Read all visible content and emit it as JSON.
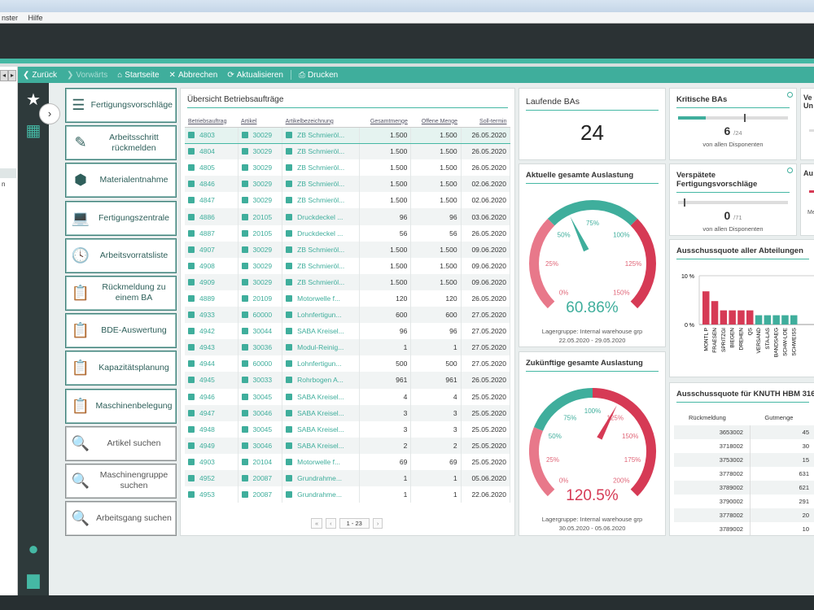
{
  "menu": {
    "items": [
      "nster",
      "Hilfe"
    ]
  },
  "toolbar": {
    "back": "Zurück",
    "forward": "Vorwärts",
    "home": "Startseite",
    "cancel": "Abbrechen",
    "refresh": "Aktualisieren",
    "print": "Drucken"
  },
  "left_strip": {
    "fragment": "n"
  },
  "nav": [
    {
      "label": "Fertigungsvorschläge",
      "icon": "list-icon",
      "glyph": "☰",
      "style": "teal"
    },
    {
      "label": "Arbeitsschritt rückmelden",
      "icon": "edit-doc-icon",
      "glyph": "✎",
      "style": "teal"
    },
    {
      "label": "Materialentnahme",
      "icon": "cubes-icon",
      "glyph": "⬢",
      "style": "teal"
    },
    {
      "label": "Fertigungszentrale",
      "icon": "laptop-icon",
      "glyph": "💻",
      "style": "dark"
    },
    {
      "label": "Arbeitsvorratsliste",
      "icon": "clock-icon",
      "glyph": "🕓",
      "style": "dark"
    },
    {
      "label": "Rückmeldung zu einem BA",
      "icon": "clipboard-icon",
      "glyph": "📋",
      "style": "dark"
    },
    {
      "label": "BDE-Auswertung",
      "icon": "clipboard-icon",
      "glyph": "📋",
      "style": "dark"
    },
    {
      "label": "Kapazitätsplanung",
      "icon": "clipboard-icon",
      "glyph": "📋",
      "style": "dark"
    },
    {
      "label": "Maschinenbelegung",
      "icon": "clipboard-icon",
      "glyph": "📋",
      "style": "dark"
    },
    {
      "label": "Artikel suchen",
      "icon": "search-icon",
      "glyph": "🔍",
      "style": "grey"
    },
    {
      "label": "Maschinengruppe suchen",
      "icon": "search-icon",
      "glyph": "🔍",
      "style": "grey"
    },
    {
      "label": "Arbeitsgang suchen",
      "icon": "search-icon",
      "glyph": "🔍",
      "style": "grey"
    }
  ],
  "orders": {
    "title": "Übersicht Betriebsaufträge",
    "columns": [
      "Betriebsauftrag",
      "Artikel",
      "Artikelbezeichnung",
      "Gesamtmenge",
      "Offene Menge",
      "Soll-termin"
    ],
    "rows": [
      [
        "4803",
        "30029",
        "ZB Schmieröl...",
        "1.500",
        "1.500",
        "26.05.2020"
      ],
      [
        "4804",
        "30029",
        "ZB Schmieröl...",
        "1.500",
        "1.500",
        "26.05.2020"
      ],
      [
        "4805",
        "30029",
        "ZB Schmieröl...",
        "1.500",
        "1.500",
        "26.05.2020"
      ],
      [
        "4846",
        "30029",
        "ZB Schmieröl...",
        "1.500",
        "1.500",
        "02.06.2020"
      ],
      [
        "4847",
        "30029",
        "ZB Schmieröl...",
        "1.500",
        "1.500",
        "02.06.2020"
      ],
      [
        "4886",
        "20105",
        "Druckdeckel ...",
        "96",
        "96",
        "03.06.2020"
      ],
      [
        "4887",
        "20105",
        "Druckdeckel ...",
        "56",
        "56",
        "26.05.2020"
      ],
      [
        "4907",
        "30029",
        "ZB Schmieröl...",
        "1.500",
        "1.500",
        "09.06.2020"
      ],
      [
        "4908",
        "30029",
        "ZB Schmieröl...",
        "1.500",
        "1.500",
        "09.06.2020"
      ],
      [
        "4909",
        "30029",
        "ZB Schmieröl...",
        "1.500",
        "1.500",
        "09.06.2020"
      ],
      [
        "4889",
        "20109",
        "Motorwelle f...",
        "120",
        "120",
        "26.05.2020"
      ],
      [
        "4933",
        "60000",
        "Lohnfertigun...",
        "600",
        "600",
        "27.05.2020"
      ],
      [
        "4942",
        "30044",
        "SABA Kreisel...",
        "96",
        "96",
        "27.05.2020"
      ],
      [
        "4943",
        "30036",
        "Modul-Reinig...",
        "1",
        "1",
        "27.05.2020"
      ],
      [
        "4944",
        "60000",
        "Lohnfertigun...",
        "500",
        "500",
        "27.05.2020"
      ],
      [
        "4945",
        "30033",
        "Rohrbogen A...",
        "961",
        "961",
        "26.05.2020"
      ],
      [
        "4946",
        "30045",
        "SABA Kreisel...",
        "4",
        "4",
        "25.05.2020"
      ],
      [
        "4947",
        "30046",
        "SABA Kreisel...",
        "3",
        "3",
        "25.05.2020"
      ],
      [
        "4948",
        "30045",
        "SABA Kreisel...",
        "3",
        "3",
        "25.05.2020"
      ],
      [
        "4949",
        "30046",
        "SABA Kreisel...",
        "2",
        "2",
        "25.05.2020"
      ],
      [
        "4903",
        "20104",
        "Motorwelle f...",
        "69",
        "69",
        "25.05.2020"
      ],
      [
        "4952",
        "20087",
        "Grundrahme...",
        "1",
        "1",
        "05.06.2020"
      ],
      [
        "4953",
        "20087",
        "Grundrahme...",
        "1",
        "1",
        "22.06.2020"
      ]
    ],
    "pager": {
      "first": "«",
      "prev": "‹",
      "current": "1 - 23",
      "next": "›"
    }
  },
  "running": {
    "title": "Laufende BAs",
    "value": "24"
  },
  "gauge_current": {
    "title": "Aktuelle gesamte Auslastung",
    "value": "60.86%",
    "value_fraction": 0.6086,
    "ticks": [
      "0%",
      "25%",
      "50%",
      "75%",
      "100%",
      "125%",
      "150%"
    ],
    "group": "Lagergruppe: Internal warehouse grp",
    "period": "22.05.2020 - 29.05.2020",
    "value_color": "#3fae9c"
  },
  "gauge_future": {
    "title": "Zukünftige gesamte Auslastung",
    "value": "120.5%",
    "value_fraction": 1.205,
    "ticks": [
      "0%",
      "25%",
      "50%",
      "75%",
      "100%",
      "125%",
      "150%",
      "175%",
      "200%"
    ],
    "group": "Lagergruppe: Internal warehouse grp",
    "period": "30.05.2020 - 05.06.2020",
    "value_color": "#d63a55"
  },
  "critical": {
    "title": "Kritische BAs",
    "value": "6",
    "total": "/24",
    "fraction": 0.25,
    "sub": "von allen Disponenten"
  },
  "late": {
    "title": "Verspätete Fertigungsvorschläge",
    "value": "0",
    "total": "/71",
    "fraction": 0.0,
    "sub": "von allen Disponenten"
  },
  "edge_cards": {
    "a": "Ve",
    "a2": "Un",
    "b": "Au",
    "b2": "Me"
  },
  "scrap": {
    "title": "Ausschussquote aller Abteilungen",
    "y_top": "10 %",
    "y_bottom": "0 %"
  },
  "chart_data": {
    "type": "bar",
    "title": "Ausschussquote aller Abteilungen",
    "categories": [
      "MONTL P",
      "FRAESEN",
      "SPRITZGI",
      "BIEGEN",
      "DREHEN",
      "QS",
      "VERSAND",
      "STA-LAS",
      "BANDSAEG",
      "SCHW-LOE",
      "SCHWEISS"
    ],
    "values": [
      6.8,
      4.8,
      2.9,
      2.9,
      2.9,
      2.9,
      1.9,
      1.9,
      1.9,
      1.9,
      1.9
    ],
    "ylim": [
      0,
      10
    ],
    "ytick_labels": [
      "0 %",
      "10 %"
    ],
    "colors": [
      "#d63a55",
      "#d63a55",
      "#d63a55",
      "#d63a55",
      "#d63a55",
      "#d63a55",
      "#3fae9c",
      "#3fae9c",
      "#3fae9c",
      "#3fae9c",
      "#3fae9c"
    ]
  },
  "scrap_machine": {
    "title": "Ausschussquote für KNUTH HBM 3165 NC",
    "columns": [
      "Rückmeldung",
      "Gutmenge"
    ],
    "rows": [
      [
        "3653002",
        "45"
      ],
      [
        "3718002",
        "30"
      ],
      [
        "3753002",
        "15"
      ],
      [
        "3778002",
        "631"
      ],
      [
        "3789002",
        "621"
      ],
      [
        "3790002",
        "291"
      ],
      [
        "3778002",
        "20"
      ],
      [
        "3789002",
        "10"
      ]
    ]
  },
  "colors": {
    "accent": "#45b8a4",
    "danger": "#d63a55",
    "sidebar": "#2e3a3b"
  }
}
